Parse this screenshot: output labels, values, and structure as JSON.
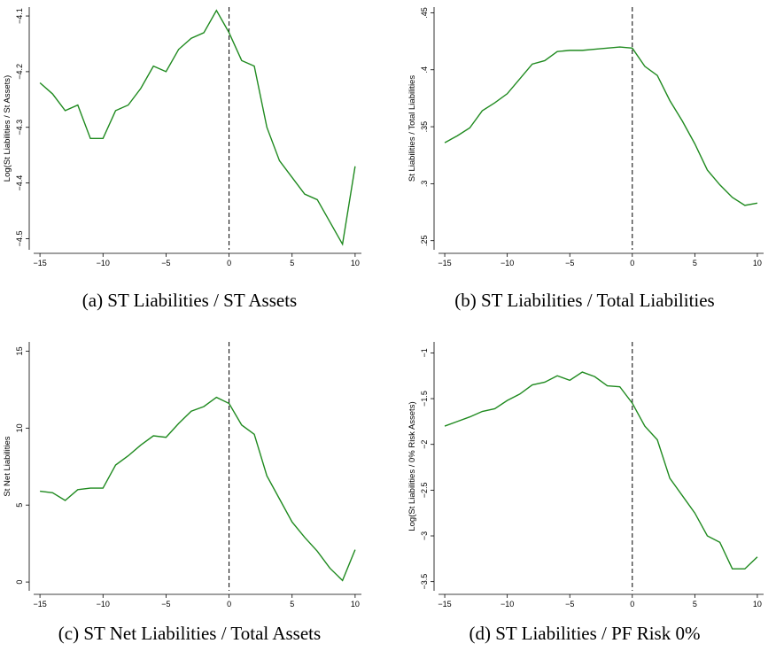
{
  "chart_data": [
    {
      "type": "line",
      "caption": "(a) ST Liabilities / ST Assets",
      "ylabel": "Log(St Liabilities / St Assets)",
      "x": [
        -15,
        -14,
        -13,
        -12,
        -11,
        -10,
        -9,
        -8,
        -7,
        -6,
        -5,
        -4,
        -3,
        -2,
        -1,
        0,
        1,
        2,
        3,
        4,
        5,
        6,
        7,
        8,
        9,
        10
      ],
      "values": [
        -4.22,
        -4.24,
        -4.27,
        -4.26,
        -4.32,
        -4.32,
        -4.27,
        -4.26,
        -4.23,
        -4.19,
        -4.2,
        -4.16,
        -4.14,
        -4.13,
        -4.09,
        -4.13,
        -4.18,
        -4.19,
        -4.3,
        -4.36,
        -4.39,
        -4.42,
        -4.43,
        -4.47,
        -4.51,
        -4.37
      ],
      "color": "#1f8a1f",
      "vline": 0,
      "xlim": [
        -15.5,
        10.5
      ],
      "xticks": [
        -15,
        -10,
        -5,
        0,
        5,
        10
      ],
      "ylim": [
        -4.52,
        -4.084
      ],
      "yticks": [
        -4.5,
        -4.4,
        -4.3,
        -4.2,
        -4.1
      ]
    },
    {
      "type": "line",
      "caption": "(b) ST Liabilities / Total Liabilities",
      "ylabel": "St Liabilities / Total Liabilities",
      "x": [
        -15,
        -14,
        -13,
        -12,
        -11,
        -10,
        -9,
        -8,
        -7,
        -6,
        -5,
        -4,
        -3,
        -2,
        -1,
        0,
        1,
        2,
        3,
        4,
        5,
        6,
        7,
        8,
        9,
        10
      ],
      "values": [
        0.336,
        0.342,
        0.349,
        0.364,
        0.371,
        0.379,
        0.392,
        0.405,
        0.408,
        0.416,
        0.417,
        0.417,
        0.418,
        0.419,
        0.42,
        0.419,
        0.403,
        0.395,
        0.373,
        0.355,
        0.335,
        0.312,
        0.299,
        0.288,
        0.281,
        0.283
      ],
      "color": "#1f8a1f",
      "vline": 0,
      "xlim": [
        -15.5,
        10.5
      ],
      "xticks": [
        -15,
        -10,
        -5,
        0,
        5,
        10
      ],
      "ylim": [
        0.242,
        0.455
      ],
      "yticks": [
        {
          "value": 0.25,
          "label": ".25"
        },
        {
          "value": 0.3,
          "label": ".3"
        },
        {
          "value": 0.35,
          "label": ".35"
        },
        {
          "value": 0.4,
          "label": ".4"
        },
        {
          "value": 0.45,
          "label": ".45"
        }
      ]
    },
    {
      "type": "line",
      "caption": "(c) ST Net Liabilities / Total Assets",
      "ylabel": "St Net Liabilities",
      "x": [
        -15,
        -14,
        -13,
        -12,
        -11,
        -10,
        -9,
        -8,
        -7,
        -6,
        -5,
        -4,
        -3,
        -2,
        -1,
        0,
        1,
        2,
        3,
        4,
        5,
        6,
        7,
        8,
        9,
        10
      ],
      "values": [
        5.9,
        5.8,
        5.3,
        6.0,
        6.1,
        6.1,
        7.6,
        8.2,
        8.9,
        9.5,
        9.4,
        10.3,
        11.1,
        11.4,
        12.0,
        11.6,
        10.2,
        9.6,
        6.9,
        5.4,
        3.9,
        2.9,
        2.0,
        0.9,
        0.1,
        2.1
      ],
      "color": "#1f8a1f",
      "vline": 0,
      "xlim": [
        -15.5,
        10.5
      ],
      "xticks": [
        -15,
        -10,
        -5,
        0,
        5,
        10
      ],
      "ylim": [
        -0.57,
        15.6
      ],
      "yticks": [
        0,
        5,
        10,
        15
      ]
    },
    {
      "type": "line",
      "caption": "(d) ST Liabilities / PF Risk 0%",
      "ylabel": "Log(St Liabilities / 0% Risk Assets)",
      "x": [
        -15,
        -14,
        -13,
        -12,
        -11,
        -10,
        -9,
        -8,
        -7,
        -6,
        -5,
        -4,
        -3,
        -2,
        -1,
        0,
        1,
        2,
        3,
        4,
        5,
        6,
        7,
        8,
        9,
        10
      ],
      "values": [
        -1.8,
        -1.75,
        -1.7,
        -1.64,
        -1.61,
        -1.52,
        -1.45,
        -1.35,
        -1.32,
        -1.25,
        -1.3,
        -1.21,
        -1.26,
        -1.36,
        -1.37,
        -1.55,
        -1.8,
        -1.95,
        -2.37,
        -2.56,
        -2.75,
        -3.0,
        -3.07,
        -3.36,
        -3.36,
        -3.23
      ],
      "color": "#1f8a1f",
      "vline": 0,
      "xlim": [
        -15.5,
        10.5
      ],
      "xticks": [
        -15,
        -10,
        -5,
        0,
        5,
        10
      ],
      "ylim": [
        -3.6,
        -0.88
      ],
      "yticks": [
        -3.5,
        -3,
        -2.5,
        -2,
        -1.5,
        -1
      ]
    }
  ]
}
